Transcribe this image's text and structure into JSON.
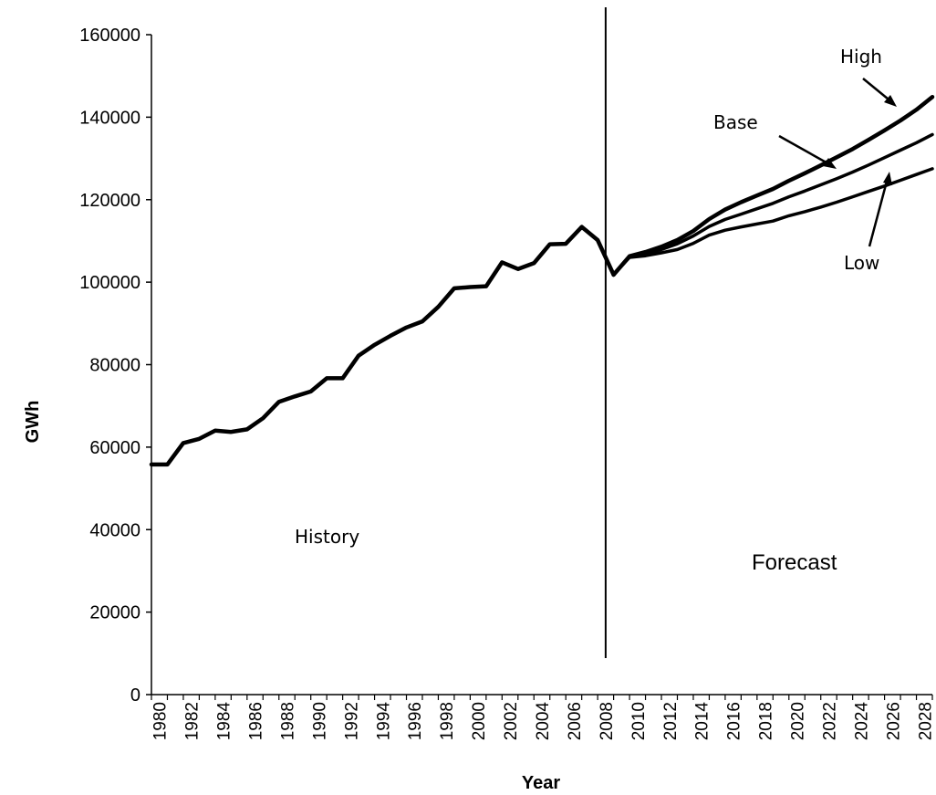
{
  "chart_data": {
    "type": "line",
    "title": "",
    "xlabel": "Year",
    "ylabel_main": "",
    "ylabel_sub": "GWh",
    "ylim": [
      0,
      160000
    ],
    "yticks": [
      0,
      20000,
      40000,
      60000,
      80000,
      100000,
      120000,
      140000,
      160000
    ],
    "xlim": [
      1980,
      2029
    ],
    "xticks": [
      "1980",
      "1982",
      "1984",
      "1986",
      "1988",
      "1990",
      "1992",
      "1994",
      "1996",
      "1998",
      "2000",
      "2002",
      "2004",
      "2006",
      "2008",
      "2010",
      "2012",
      "2014",
      "2016",
      "2018",
      "2020",
      "2022",
      "2024",
      "2026",
      "2028"
    ],
    "divider_year": 2008.5,
    "grid": false,
    "series": [
      {
        "name": "History",
        "x": [
          1980,
          1981,
          1982,
          1983,
          1984,
          1985,
          1986,
          1987,
          1988,
          1989,
          1990,
          1991,
          1992,
          1993,
          1994,
          1995,
          1996,
          1997,
          1998,
          1999,
          2000,
          2001,
          2002,
          2003,
          2004,
          2005,
          2006,
          2007,
          2008,
          2009
        ],
        "values": [
          55800,
          55800,
          61000,
          62000,
          64000,
          63700,
          64300,
          67000,
          71000,
          72300,
          73500,
          76700,
          76700,
          82200,
          84800,
          87000,
          89000,
          90500,
          94000,
          98500,
          98800,
          99000,
          104800,
          103200,
          104600,
          109200,
          109300,
          113400,
          110200,
          101800
        ]
      },
      {
        "name": "High",
        "x": [
          2009,
          2010,
          2011,
          2012,
          2013,
          2014,
          2015,
          2016,
          2017,
          2018,
          2019,
          2020,
          2021,
          2022,
          2023,
          2024,
          2025,
          2026,
          2027,
          2028,
          2029
        ],
        "values": [
          101800,
          106300,
          107300,
          108600,
          110200,
          112400,
          115300,
          117600,
          119400,
          121000,
          122600,
          124600,
          126400,
          128300,
          130300,
          132300,
          134500,
          136800,
          139200,
          141800,
          144900
        ]
      },
      {
        "name": "Base",
        "x": [
          2009,
          2010,
          2011,
          2012,
          2013,
          2014,
          2015,
          2016,
          2017,
          2018,
          2019,
          2020,
          2021,
          2022,
          2023,
          2024,
          2025,
          2026,
          2027,
          2028,
          2029
        ],
        "values": [
          101800,
          106200,
          106900,
          107900,
          109300,
          111200,
          113500,
          115200,
          116500,
          117800,
          119100,
          120700,
          122100,
          123600,
          125100,
          126700,
          128400,
          130200,
          132000,
          133800,
          135800
        ]
      },
      {
        "name": "Low",
        "x": [
          2009,
          2010,
          2011,
          2012,
          2013,
          2014,
          2015,
          2016,
          2017,
          2018,
          2019,
          2020,
          2021,
          2022,
          2023,
          2024,
          2025,
          2026,
          2027,
          2028,
          2029
        ],
        "values": [
          101800,
          106000,
          106400,
          107100,
          107900,
          109400,
          111400,
          112600,
          113400,
          114100,
          114800,
          116100,
          117100,
          118200,
          119400,
          120700,
          122000,
          123300,
          124700,
          126100,
          127500
        ]
      }
    ],
    "annotations": {
      "history": "History",
      "forecast": "Forecast",
      "high": "High",
      "base": "Base",
      "low": "Low"
    }
  }
}
